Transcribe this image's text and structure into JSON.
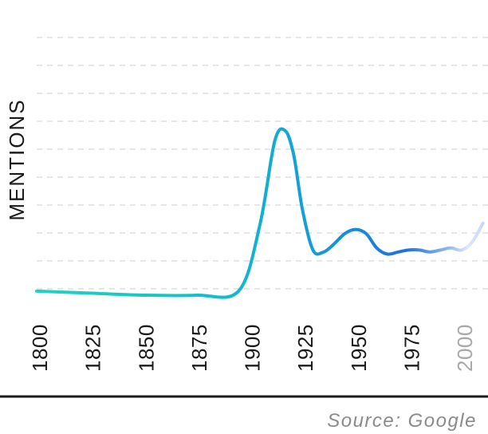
{
  "chart_data": {
    "type": "line",
    "ylabel": "MENTIONS",
    "source": "Source: Google",
    "x_ticks": [
      "1800",
      "1825",
      "1850",
      "1875",
      "1900",
      "1925",
      "1950",
      "1975",
      "2000"
    ],
    "xlim": [
      1800,
      2010
    ],
    "ylim": [
      0,
      10
    ],
    "grid": true,
    "series": [
      {
        "x": [
          1800,
          1825,
          1850,
          1875,
          1895,
          1905,
          1912,
          1917,
          1921,
          1925,
          1930,
          1935,
          1940,
          1945,
          1950,
          1955,
          1960,
          1965,
          1970,
          1975,
          1980,
          1985,
          1990,
          1995,
          2000,
          2005,
          2010
        ],
        "values": [
          0.2,
          0.1,
          0.0,
          0.0,
          0.2,
          3.4,
          7.5,
          8.0,
          6.8,
          4.2,
          2.2,
          2.1,
          2.5,
          3.0,
          3.2,
          3.0,
          2.3,
          2.0,
          2.1,
          2.2,
          2.2,
          2.1,
          2.2,
          2.3,
          2.2,
          2.6,
          3.5
        ]
      }
    ],
    "colors": {
      "line_start": "#20d3c0",
      "line_mid": "#12a6d6",
      "line_late": "#1f73db",
      "line_fade": "#d8e6fb",
      "grid": "#dedede",
      "tick": "#1a1a1a",
      "tick_faded": "#a8a8a8",
      "axis": "#1a1a1a"
    }
  }
}
